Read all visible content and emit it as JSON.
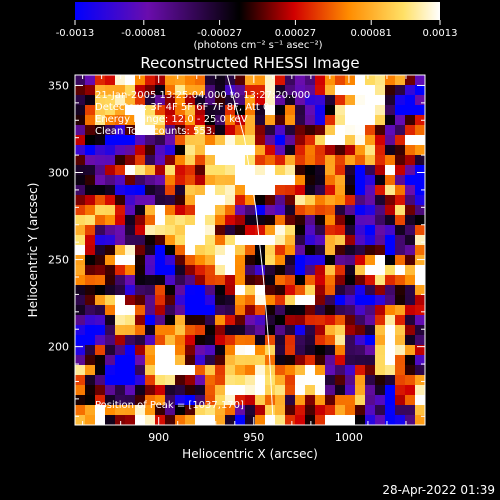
{
  "chart_data": {
    "type": "heatmap",
    "title": "Reconstructed RHESSI Image",
    "xlabel": "Heliocentric X (arcsec)",
    "ylabel": "Heliocentric Y (arcsec)",
    "xlim": [
      856,
      1040
    ],
    "ylim": [
      155,
      356
    ],
    "x_ticks": [
      900,
      950,
      1000
    ],
    "y_ticks": [
      200,
      250,
      300,
      350
    ],
    "colorbar": {
      "range": [
        -0.0013,
        0.0013
      ],
      "tick_labels": [
        "-0.0013",
        "-0.00081",
        "-0.00027",
        "0.00027",
        "0.00081",
        "0.0013"
      ],
      "unit_label": "(photons cm⁻² s⁻¹ asec⁻²)",
      "colors": [
        "#0000ff",
        "#6a0dad",
        "#000000",
        "#d10000",
        "#ff8c00",
        "#ffe066",
        "#ffffff"
      ]
    },
    "annotations": [
      "21-Jan-2005 13:25:04.000 to 13:27:20.000",
      "Detectors: 3F 4F 5F 6F 7F 8F, Att 0",
      "Energy Range: 12.0 - 25.0 keV",
      "Clean    Total counts: 553."
    ],
    "peak_label": "Position of Peak = [1037,170]",
    "peak": {
      "x": 1037,
      "y": 170
    },
    "limb_curve": [
      [
        936,
        356
      ],
      [
        945,
        320
      ],
      [
        951,
        280
      ],
      [
        955,
        240
      ],
      [
        958,
        200
      ],
      [
        960,
        160
      ],
      [
        961,
        155
      ]
    ],
    "grid": false
  },
  "footer": {
    "timestamp": "28-Apr-2022 01:39"
  }
}
